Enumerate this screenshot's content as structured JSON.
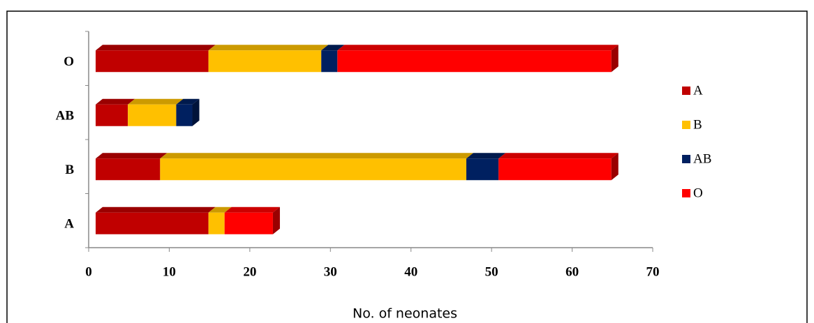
{
  "chart_data": {
    "type": "stacked-bar-horizontal-3d",
    "x_label": "No. of neonates",
    "categories": [
      "A",
      "B",
      "AB",
      "O"
    ],
    "series": [
      {
        "name": "A",
        "color": "#c00000",
        "values": [
          14,
          8,
          4,
          14
        ]
      },
      {
        "name": "B",
        "color": "#ffc000",
        "values": [
          2,
          38,
          6,
          14
        ]
      },
      {
        "name": "AB",
        "color": "#002060",
        "values": [
          0,
          4,
          2,
          2
        ]
      },
      {
        "name": "O",
        "color": "#ff0000",
        "values": [
          6,
          14,
          0,
          34
        ]
      }
    ],
    "xlim": [
      0,
      70
    ],
    "xticks": [
      0,
      10,
      20,
      30,
      40,
      50,
      60,
      70
    ],
    "legend": "right"
  }
}
